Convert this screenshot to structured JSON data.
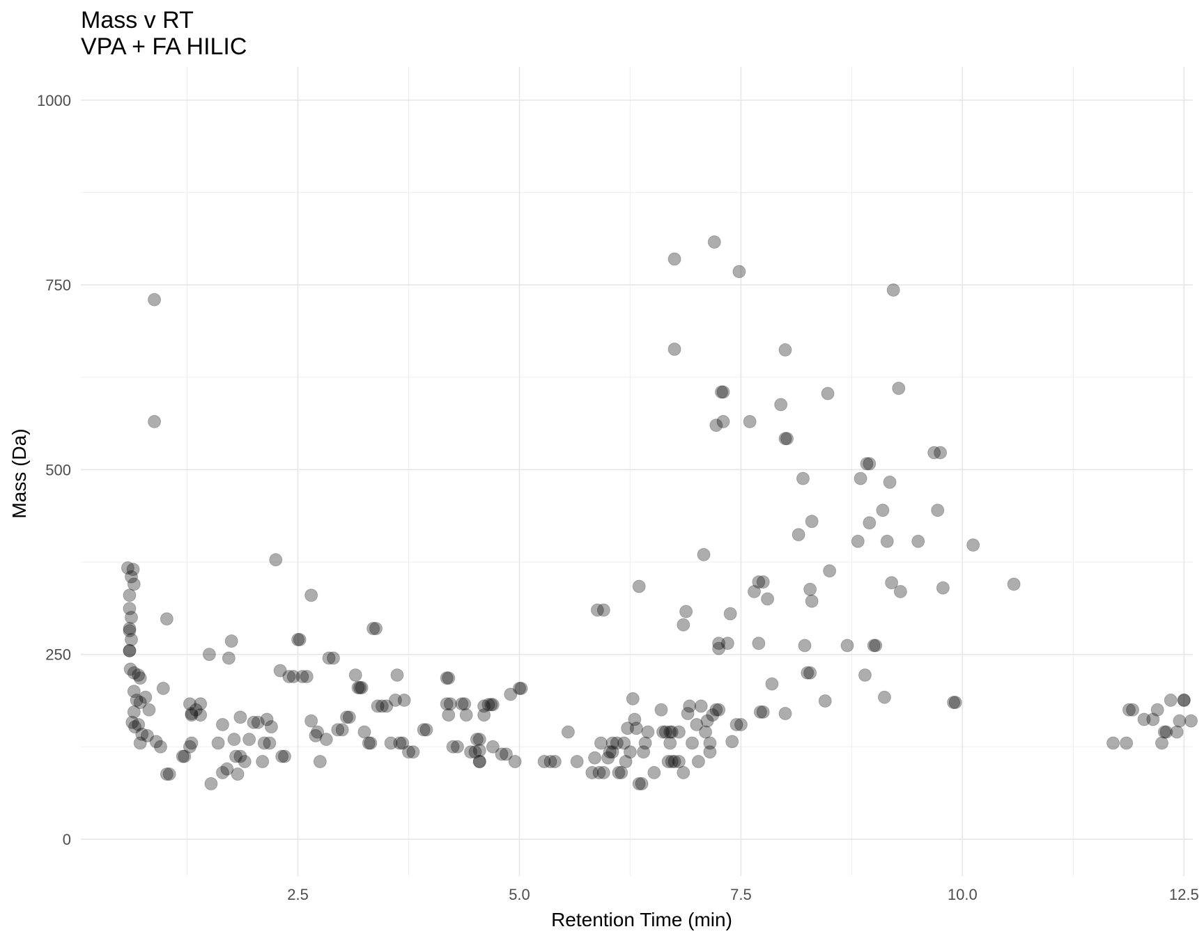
{
  "chart_data": {
    "type": "scatter",
    "title": "Mass v RT",
    "subtitle": "VPA + FA HILIC",
    "xlabel": "Retention Time (min)",
    "ylabel": "Mass (Da)",
    "xlim": [
      0.05,
      12.6
    ],
    "ylim": [
      -50,
      1045
    ],
    "xticks": [
      2.5,
      5.0,
      7.5,
      10.0,
      12.5
    ],
    "xtick_labels": [
      "2.5",
      "5.0",
      "7.5",
      "10.0",
      "12.5"
    ],
    "yticks": [
      0,
      250,
      500,
      750,
      1000
    ],
    "ytick_labels": [
      "0",
      "250",
      "500",
      "750",
      "1000"
    ],
    "grid": true,
    "legend": "none",
    "point_color": "#000000",
    "points": [
      [
        0.58,
        367
      ],
      [
        0.62,
        355
      ],
      [
        0.65,
        345
      ],
      [
        0.64,
        365
      ],
      [
        0.6,
        330
      ],
      [
        0.6,
        312
      ],
      [
        0.62,
        300
      ],
      [
        0.6,
        285
      ],
      [
        0.6,
        282
      ],
      [
        0.62,
        270
      ],
      [
        0.6,
        255
      ],
      [
        0.6,
        255
      ],
      [
        0.61,
        230
      ],
      [
        0.65,
        225
      ],
      [
        0.7,
        222
      ],
      [
        0.72,
        218
      ],
      [
        0.65,
        200
      ],
      [
        0.68,
        188
      ],
      [
        0.72,
        185
      ],
      [
        0.78,
        192
      ],
      [
        0.82,
        175
      ],
      [
        0.65,
        172
      ],
      [
        0.63,
        158
      ],
      [
        0.66,
        152
      ],
      [
        0.7,
        155
      ],
      [
        0.74,
        142
      ],
      [
        0.8,
        140
      ],
      [
        0.72,
        130
      ],
      [
        0.9,
        132
      ],
      [
        0.95,
        125
      ],
      [
        0.88,
        730
      ],
      [
        0.88,
        565
      ],
      [
        1.02,
        298
      ],
      [
        0.98,
        204
      ],
      [
        1.05,
        88
      ],
      [
        1.02,
        88
      ],
      [
        1.2,
        112
      ],
      [
        1.22,
        112
      ],
      [
        1.28,
        125
      ],
      [
        1.3,
        130
      ],
      [
        1.28,
        183
      ],
      [
        1.3,
        170
      ],
      [
        1.3,
        168
      ],
      [
        1.35,
        175
      ],
      [
        1.4,
        183
      ],
      [
        1.4,
        168
      ],
      [
        1.5,
        250
      ],
      [
        1.52,
        75
      ],
      [
        1.6,
        130
      ],
      [
        1.65,
        155
      ],
      [
        1.65,
        90
      ],
      [
        1.7,
        95
      ],
      [
        1.72,
        245
      ],
      [
        1.75,
        268
      ],
      [
        1.78,
        135
      ],
      [
        1.8,
        112
      ],
      [
        1.82,
        88
      ],
      [
        1.85,
        165
      ],
      [
        1.85,
        112
      ],
      [
        1.9,
        105
      ],
      [
        1.95,
        135
      ],
      [
        2.0,
        158
      ],
      [
        2.05,
        158
      ],
      [
        2.1,
        105
      ],
      [
        2.12,
        130
      ],
      [
        2.15,
        162
      ],
      [
        2.18,
        130
      ],
      [
        2.2,
        152
      ],
      [
        2.25,
        378
      ],
      [
        2.3,
        228
      ],
      [
        2.32,
        112
      ],
      [
        2.35,
        112
      ],
      [
        2.4,
        220
      ],
      [
        2.45,
        220
      ],
      [
        2.5,
        270
      ],
      [
        2.52,
        270
      ],
      [
        2.55,
        220
      ],
      [
        2.6,
        220
      ],
      [
        2.65,
        330
      ],
      [
        2.65,
        160
      ],
      [
        2.7,
        140
      ],
      [
        2.72,
        145
      ],
      [
        2.75,
        105
      ],
      [
        2.82,
        135
      ],
      [
        2.85,
        245
      ],
      [
        2.9,
        245
      ],
      [
        2.95,
        148
      ],
      [
        3.0,
        148
      ],
      [
        3.05,
        165
      ],
      [
        3.08,
        165
      ],
      [
        3.15,
        222
      ],
      [
        3.18,
        205
      ],
      [
        3.2,
        205
      ],
      [
        3.22,
        205
      ],
      [
        3.25,
        145
      ],
      [
        3.3,
        130
      ],
      [
        3.32,
        130
      ],
      [
        3.35,
        285
      ],
      [
        3.38,
        285
      ],
      [
        3.4,
        180
      ],
      [
        3.45,
        180
      ],
      [
        3.5,
        180
      ],
      [
        3.55,
        130
      ],
      [
        3.6,
        188
      ],
      [
        3.62,
        222
      ],
      [
        3.65,
        130
      ],
      [
        3.68,
        130
      ],
      [
        3.7,
        188
      ],
      [
        3.75,
        118
      ],
      [
        3.8,
        118
      ],
      [
        3.92,
        148
      ],
      [
        3.95,
        148
      ],
      [
        4.18,
        218
      ],
      [
        4.2,
        218
      ],
      [
        4.18,
        183
      ],
      [
        4.2,
        168
      ],
      [
        4.22,
        183
      ],
      [
        4.25,
        125
      ],
      [
        4.3,
        125
      ],
      [
        4.35,
        183
      ],
      [
        4.38,
        183
      ],
      [
        4.4,
        168
      ],
      [
        4.45,
        118
      ],
      [
        4.5,
        118
      ],
      [
        4.52,
        135
      ],
      [
        4.55,
        120
      ],
      [
        4.55,
        105
      ],
      [
        4.55,
        105
      ],
      [
        4.55,
        135
      ],
      [
        4.6,
        180
      ],
      [
        4.6,
        168
      ],
      [
        4.65,
        182
      ],
      [
        4.68,
        182
      ],
      [
        4.7,
        182
      ],
      [
        4.7,
        125
      ],
      [
        4.8,
        115
      ],
      [
        4.85,
        115
      ],
      [
        4.9,
        196
      ],
      [
        4.95,
        105
      ],
      [
        5.0,
        204
      ],
      [
        5.02,
        204
      ],
      [
        5.28,
        105
      ],
      [
        5.35,
        105
      ],
      [
        5.4,
        105
      ],
      [
        5.55,
        145
      ],
      [
        5.65,
        105
      ],
      [
        5.82,
        90
      ],
      [
        5.85,
        110
      ],
      [
        5.88,
        310
      ],
      [
        5.9,
        90
      ],
      [
        5.92,
        130
      ],
      [
        5.95,
        310
      ],
      [
        5.95,
        90
      ],
      [
        6.0,
        110
      ],
      [
        6.02,
        118
      ],
      [
        6.05,
        118
      ],
      [
        6.05,
        130
      ],
      [
        6.1,
        130
      ],
      [
        6.12,
        90
      ],
      [
        6.15,
        90
      ],
      [
        6.18,
        130
      ],
      [
        6.2,
        105
      ],
      [
        6.22,
        150
      ],
      [
        6.25,
        118
      ],
      [
        6.28,
        190
      ],
      [
        6.3,
        162
      ],
      [
        6.32,
        150
      ],
      [
        6.35,
        342
      ],
      [
        6.35,
        75
      ],
      [
        6.38,
        75
      ],
      [
        6.4,
        118
      ],
      [
        6.42,
        130
      ],
      [
        6.45,
        145
      ],
      [
        6.52,
        90
      ],
      [
        6.6,
        175
      ],
      [
        6.62,
        145
      ],
      [
        6.65,
        145
      ],
      [
        6.68,
        105
      ],
      [
        6.7,
        145
      ],
      [
        6.7,
        130
      ],
      [
        6.72,
        145
      ],
      [
        6.72,
        105
      ],
      [
        6.75,
        105
      ],
      [
        6.75,
        785
      ],
      [
        6.75,
        663
      ],
      [
        6.8,
        145
      ],
      [
        6.8,
        105
      ],
      [
        6.85,
        90
      ],
      [
        6.85,
        290
      ],
      [
        6.88,
        308
      ],
      [
        6.9,
        170
      ],
      [
        6.92,
        180
      ],
      [
        6.95,
        130
      ],
      [
        7.0,
        155
      ],
      [
        7.02,
        105
      ],
      [
        7.05,
        180
      ],
      [
        7.08,
        385
      ],
      [
        7.1,
        145
      ],
      [
        7.12,
        160
      ],
      [
        7.15,
        130
      ],
      [
        7.15,
        118
      ],
      [
        7.18,
        168
      ],
      [
        7.2,
        808
      ],
      [
        7.22,
        175
      ],
      [
        7.25,
        175
      ],
      [
        7.22,
        560
      ],
      [
        7.25,
        265
      ],
      [
        7.25,
        258
      ],
      [
        7.28,
        605
      ],
      [
        7.3,
        605
      ],
      [
        7.3,
        565
      ],
      [
        7.35,
        265
      ],
      [
        7.38,
        305
      ],
      [
        7.4,
        132
      ],
      [
        7.45,
        155
      ],
      [
        7.5,
        155
      ],
      [
        7.48,
        768
      ],
      [
        7.6,
        565
      ],
      [
        7.65,
        335
      ],
      [
        7.7,
        348
      ],
      [
        7.7,
        265
      ],
      [
        7.72,
        172
      ],
      [
        7.75,
        348
      ],
      [
        7.75,
        172
      ],
      [
        7.8,
        325
      ],
      [
        7.85,
        210
      ],
      [
        7.95,
        588
      ],
      [
        8.0,
        662
      ],
      [
        8.0,
        170
      ],
      [
        8.0,
        542
      ],
      [
        8.02,
        542
      ],
      [
        8.15,
        412
      ],
      [
        8.2,
        488
      ],
      [
        8.22,
        262
      ],
      [
        8.25,
        225
      ],
      [
        8.28,
        225
      ],
      [
        8.28,
        338
      ],
      [
        8.3,
        322
      ],
      [
        8.3,
        430
      ],
      [
        8.45,
        187
      ],
      [
        8.48,
        603
      ],
      [
        8.5,
        363
      ],
      [
        8.7,
        262
      ],
      [
        8.82,
        403
      ],
      [
        8.85,
        488
      ],
      [
        8.9,
        222
      ],
      [
        8.92,
        508
      ],
      [
        8.95,
        508
      ],
      [
        8.95,
        428
      ],
      [
        9.0,
        262
      ],
      [
        9.02,
        262
      ],
      [
        9.1,
        445
      ],
      [
        9.12,
        192
      ],
      [
        9.15,
        403
      ],
      [
        9.18,
        483
      ],
      [
        9.2,
        347
      ],
      [
        9.22,
        743
      ],
      [
        9.28,
        610
      ],
      [
        9.3,
        335
      ],
      [
        9.5,
        403
      ],
      [
        9.68,
        523
      ],
      [
        9.72,
        445
      ],
      [
        9.75,
        523
      ],
      [
        9.78,
        340
      ],
      [
        9.9,
        185
      ],
      [
        9.92,
        185
      ],
      [
        10.12,
        398
      ],
      [
        10.58,
        345
      ],
      [
        11.7,
        130
      ],
      [
        11.85,
        130
      ],
      [
        11.88,
        175
      ],
      [
        11.92,
        175
      ],
      [
        12.05,
        162
      ],
      [
        12.15,
        162
      ],
      [
        12.2,
        175
      ],
      [
        12.25,
        130
      ],
      [
        12.28,
        145
      ],
      [
        12.3,
        145
      ],
      [
        12.35,
        188
      ],
      [
        12.42,
        145
      ],
      [
        12.45,
        160
      ],
      [
        12.5,
        188
      ],
      [
        12.58,
        160
      ],
      [
        12.5,
        188
      ]
    ]
  }
}
